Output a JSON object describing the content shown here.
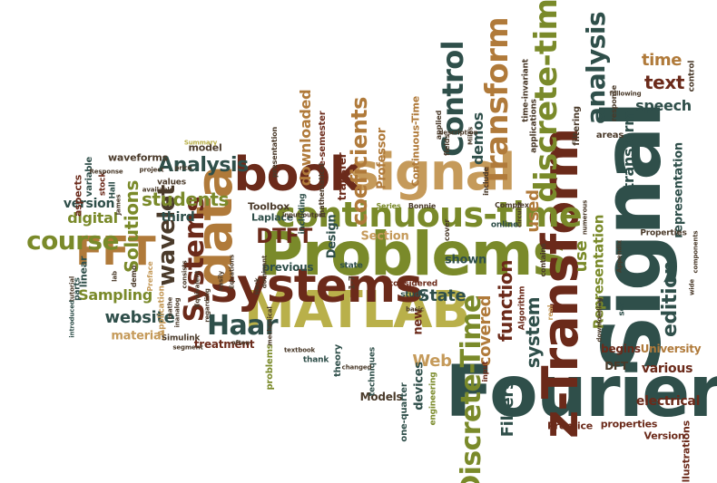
{
  "words": [
    {
      "t": "Signal",
      "c": "c1"
    },
    {
      "t": "Fourier",
      "c": "c1"
    },
    {
      "t": "Problems",
      "c": "c4"
    },
    {
      "t": "MATLAB",
      "c": "c3"
    },
    {
      "t": "z-Transform",
      "c": "c2"
    },
    {
      "t": "systems",
      "c": "c2"
    },
    {
      "t": "data",
      "c": "c5"
    },
    {
      "t": "signal",
      "c": "c7"
    },
    {
      "t": "book",
      "c": "c2"
    },
    {
      "t": "continuous-time",
      "c": "c4"
    },
    {
      "t": "discrete-time",
      "c": "c4"
    },
    {
      "t": "Transform",
      "c": "c5"
    },
    {
      "t": "Control",
      "c": "c1"
    },
    {
      "t": "analysis",
      "c": "c1"
    },
    {
      "t": "FFT",
      "c": "c5"
    },
    {
      "t": "Haar",
      "c": "c1"
    },
    {
      "t": "Discrete-Time",
      "c": "c4"
    },
    {
      "t": "Systems",
      "c": "c2"
    },
    {
      "t": "wavelet",
      "c": "c6"
    },
    {
      "t": "course",
      "c": "c4"
    },
    {
      "t": "DTFT",
      "c": "c2"
    },
    {
      "t": "Analysis",
      "c": "c1"
    },
    {
      "t": "students",
      "c": "c4"
    },
    {
      "t": "coeficients",
      "c": "c5"
    },
    {
      "t": "edition",
      "c": "c1"
    },
    {
      "t": "text",
      "c": "c2"
    },
    {
      "t": "time",
      "c": "c5"
    },
    {
      "t": "speech",
      "c": "c1"
    },
    {
      "t": "transform",
      "c": "c1"
    },
    {
      "t": "representation",
      "c": "c1"
    },
    {
      "t": "demos",
      "c": "c1"
    },
    {
      "t": "function",
      "c": "c2"
    },
    {
      "t": "system",
      "c": "c1"
    },
    {
      "t": "used",
      "c": "c5"
    },
    {
      "t": "use",
      "c": "c4"
    },
    {
      "t": "Representation",
      "c": "c4"
    },
    {
      "t": "website",
      "c": "c1"
    },
    {
      "t": "Sampling",
      "c": "c4"
    },
    {
      "t": "digital",
      "c": "c4"
    },
    {
      "t": "Solutions",
      "c": "c4"
    },
    {
      "t": "State",
      "c": "c1"
    },
    {
      "t": "covered",
      "c": "c5"
    },
    {
      "t": "Web",
      "c": "c7"
    },
    {
      "t": "Filters",
      "c": "c1"
    },
    {
      "t": "various",
      "c": "c2"
    },
    {
      "t": "University",
      "c": "c5"
    },
    {
      "t": "begins",
      "c": "c2"
    },
    {
      "t": "DFT",
      "c": "c6"
    },
    {
      "t": "electrical",
      "c": "c2"
    },
    {
      "t": "properties",
      "c": "c2"
    },
    {
      "t": "Prentice",
      "c": "c2"
    },
    {
      "t": "Version",
      "c": "c2"
    },
    {
      "t": "illustrations",
      "c": "c2"
    },
    {
      "t": "Models",
      "c": "c6"
    },
    {
      "t": "devices",
      "c": "c1"
    },
    {
      "t": "new",
      "c": "c2"
    },
    {
      "t": "shown",
      "c": "c1"
    },
    {
      "t": "Design",
      "c": "c1"
    },
    {
      "t": "Section",
      "c": "c7"
    },
    {
      "t": "downloaded",
      "c": "c5"
    },
    {
      "t": "material",
      "c": "c7"
    },
    {
      "t": "treatment",
      "c": "c2"
    },
    {
      "t": "version",
      "c": "c1"
    },
    {
      "t": "third",
      "c": "c1"
    },
    {
      "t": "Laplace",
      "c": "c1"
    },
    {
      "t": "Toolbox",
      "c": "c6"
    },
    {
      "t": "previous",
      "c": "c1"
    },
    {
      "t": "Professor",
      "c": "c5"
    },
    {
      "t": "transfer",
      "c": "c2"
    },
    {
      "t": "one-semester",
      "c": "c2"
    },
    {
      "t": "Continuous-Time",
      "c": "c5"
    },
    {
      "t": "model",
      "c": "c6"
    },
    {
      "t": "waveforms",
      "c": "c6"
    },
    {
      "t": "areas",
      "c": "c6"
    },
    {
      "t": "time-invariant",
      "c": "c6"
    },
    {
      "t": "applications",
      "c": "c6"
    },
    {
      "t": "filtering",
      "c": "c6"
    },
    {
      "t": "control",
      "c": "c6"
    },
    {
      "t": "response",
      "c": "c6"
    },
    {
      "t": "Properties",
      "c": "c6"
    },
    {
      "t": "one-quarter",
      "c": "c1"
    },
    {
      "t": "engineering",
      "c": "c4"
    },
    {
      "t": "theory",
      "c": "c1"
    },
    {
      "t": "problems",
      "c": "c4"
    },
    {
      "t": "Simulink",
      "c": "c6"
    },
    {
      "t": "Application",
      "c": "c7"
    },
    {
      "t": "aspects",
      "c": "c2"
    },
    {
      "t": "variable",
      "c": "c1"
    },
    {
      "t": "linear",
      "c": "c1"
    },
    {
      "t": "stock",
      "c": "c2"
    },
    {
      "t": "parts",
      "c": "c1"
    },
    {
      "t": "Hall",
      "c": "c1"
    },
    {
      "t": "values",
      "c": "c6"
    },
    {
      "t": "including",
      "c": "c1"
    },
    {
      "t": "1-7",
      "c": "c6"
    },
    {
      "t": "state",
      "c": "c1"
    },
    {
      "t": "study",
      "c": "c1"
    },
    {
      "t": "considered",
      "c": "c2"
    },
    {
      "t": "techniques",
      "c": "c1"
    },
    {
      "t": "thank",
      "c": "c1"
    },
    {
      "t": "Algorithm",
      "c": "c2"
    },
    {
      "t": "online",
      "c": "c1"
    },
    {
      "t": "input",
      "c": "c2"
    },
    {
      "t": "cover",
      "c": "c6"
    },
    {
      "t": "Bonnie",
      "c": "c6"
    },
    {
      "t": "Series",
      "c": "c4"
    },
    {
      "t": "applied",
      "c": "c6"
    },
    {
      "t": "fields",
      "c": "c6"
    },
    {
      "t": "include",
      "c": "c6"
    },
    {
      "t": "Complex",
      "c": "c6"
    },
    {
      "t": "Summary",
      "c": "c3"
    },
    {
      "t": "Response",
      "c": "c6"
    },
    {
      "t": "presentation",
      "c": "c6"
    },
    {
      "t": "mathematical",
      "c": "c6"
    },
    {
      "t": "price",
      "c": "c6"
    },
    {
      "t": "Preface",
      "c": "c7"
    },
    {
      "t": "demo",
      "c": "c6"
    },
    {
      "t": "lab",
      "c": "c6"
    },
    {
      "t": "tutorial",
      "c": "c6"
    },
    {
      "t": "introduced",
      "c": "c1"
    },
    {
      "t": "segment",
      "c": "c6"
    },
    {
      "t": "textbook",
      "c": "c6"
    },
    {
      "t": "changed",
      "c": "c6"
    },
    {
      "t": "basic",
      "c": "c6"
    },
    {
      "t": "real",
      "c": "c7"
    },
    {
      "t": "contains",
      "c": "c6"
    },
    {
      "t": "numerous",
      "c": "c6"
    },
    {
      "t": "downloading",
      "c": "c6"
    },
    {
      "t": "set",
      "c": "c1"
    },
    {
      "t": "following",
      "c": "c6"
    },
    {
      "t": "components",
      "c": "c6"
    },
    {
      "t": "wide",
      "c": "c6"
    },
    {
      "t": "Appendix",
      "c": "c6"
    },
    {
      "t": "circuits",
      "c": "c6"
    },
    {
      "t": "description",
      "c": "c6"
    },
    {
      "t": "Miles",
      "c": "c6"
    },
    {
      "t": "James",
      "c": "c6"
    },
    {
      "t": "project",
      "c": "c6"
    },
    {
      "t": "available",
      "c": "c6"
    },
    {
      "t": "Equations",
      "c": "c6"
    },
    {
      "t": "regarding",
      "c": "c6"
    },
    {
      "t": "Heck",
      "c": "c6"
    },
    {
      "t": "dominant",
      "c": "c6"
    },
    {
      "t": "mechanical",
      "c": "c6"
    },
    {
      "t": "often",
      "c": "c6"
    },
    {
      "t": "input/output",
      "c": "c6"
    },
    {
      "t": "consists",
      "c": "c6"
    },
    {
      "t": "easily",
      "c": "c6"
    },
    {
      "t": "Equivalent",
      "c": "c6"
    },
    {
      "t": "inanalog",
      "c": "c6"
    },
    {
      "t": "mathe",
      "c": "c6"
    }
  ]
}
